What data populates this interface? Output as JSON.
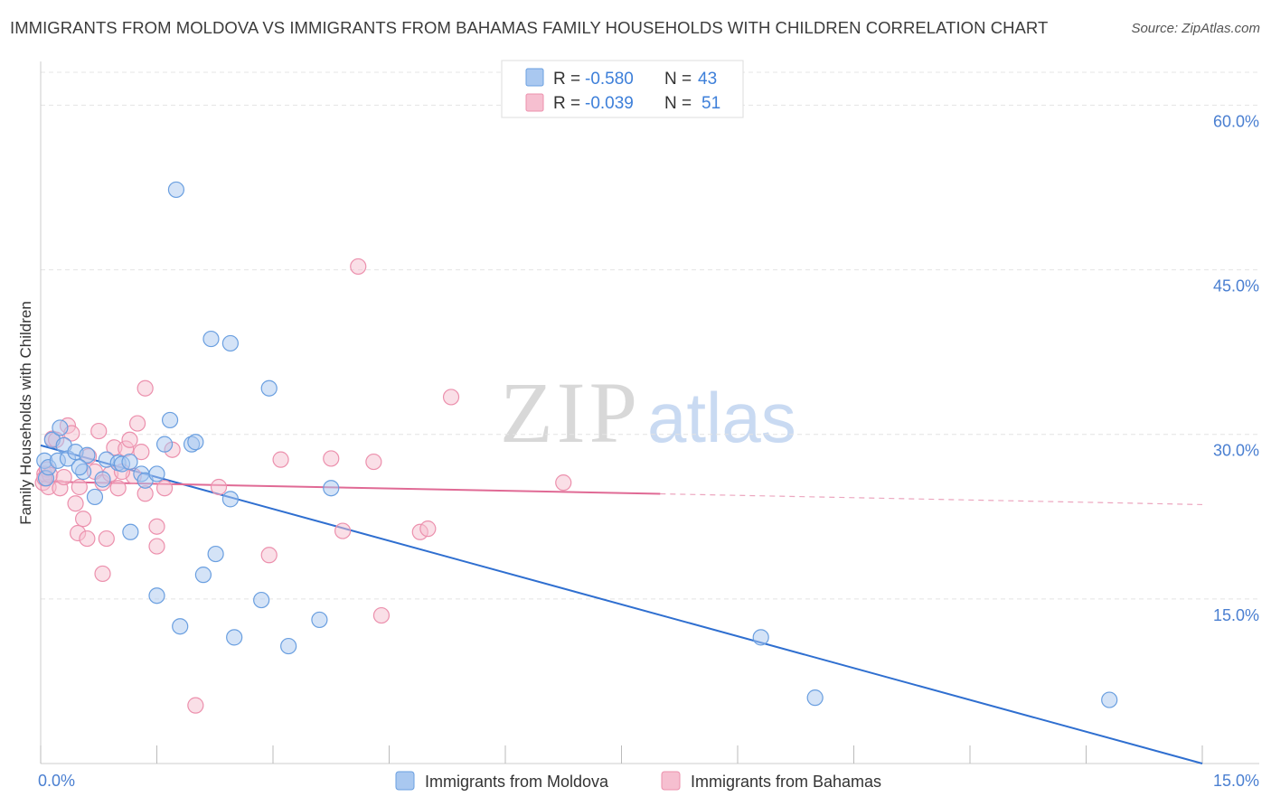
{
  "title": "IMMIGRANTS FROM MOLDOVA VS IMMIGRANTS FROM BAHAMAS FAMILY HOUSEHOLDS WITH CHILDREN CORRELATION CHART",
  "source": "Source: ZipAtlas.com",
  "watermark": {
    "zip": "ZIP",
    "atlas": "atlas"
  },
  "colors": {
    "moldova_fill": "#a9c8f0",
    "moldova_stroke": "#6a9fe0",
    "moldova_line": "#2f6fd0",
    "bahamas_fill": "#f6bfd0",
    "bahamas_stroke": "#ec90ad",
    "bahamas_line": "#e06a95",
    "tick_text": "#4a7fd1",
    "grid": "#e4e4e4"
  },
  "legend": {
    "r_label": "R =",
    "n_label": "N =",
    "rows": [
      {
        "series": "moldova",
        "r": "-0.580",
        "n": "43"
      },
      {
        "series": "bahamas",
        "r": "-0.039",
        "n": "51"
      }
    ]
  },
  "chart_data": {
    "type": "scatter",
    "title": "IMMIGRANTS FROM MOLDOVA VS IMMIGRANTS FROM BAHAMAS FAMILY HOUSEHOLDS WITH CHILDREN CORRELATION CHART",
    "xlabel": "",
    "ylabel": "Family Households with Children",
    "xlim": [
      0,
      15
    ],
    "ylim": [
      0,
      63
    ],
    "x_tick_labels": [
      {
        "value": 0,
        "label": "0.0%"
      },
      {
        "value": 15,
        "label": "15.0%"
      }
    ],
    "y_tick_labels": [
      {
        "value": 15,
        "label": "15.0%"
      },
      {
        "value": 30,
        "label": "30.0%"
      },
      {
        "value": 45,
        "label": "45.0%"
      },
      {
        "value": 60,
        "label": "60.0%"
      }
    ],
    "series": [
      {
        "name": "Immigrants from Moldova",
        "key": "moldova",
        "r": -0.58,
        "n": 43,
        "trend": {
          "x": [
            0,
            15
          ],
          "y": [
            29.0,
            0.0
          ],
          "solid_until": 15
        },
        "points": [
          [
            0.05,
            27.6
          ],
          [
            0.07,
            26.0
          ],
          [
            0.1,
            27.0
          ],
          [
            0.15,
            29.5
          ],
          [
            0.22,
            27.6
          ],
          [
            0.25,
            30.6
          ],
          [
            0.3,
            29.0
          ],
          [
            0.35,
            27.8
          ],
          [
            0.45,
            28.4
          ],
          [
            0.55,
            26.6
          ],
          [
            0.6,
            28.1
          ],
          [
            0.7,
            24.3
          ],
          [
            0.85,
            27.7
          ],
          [
            0.8,
            25.9
          ],
          [
            1.0,
            27.4
          ],
          [
            1.05,
            27.3
          ],
          [
            1.15,
            27.5
          ],
          [
            1.3,
            26.4
          ],
          [
            1.35,
            25.8
          ],
          [
            1.5,
            26.4
          ],
          [
            1.6,
            29.1
          ],
          [
            1.67,
            31.3
          ],
          [
            1.95,
            29.1
          ],
          [
            2.0,
            29.3
          ],
          [
            1.75,
            52.3
          ],
          [
            2.2,
            38.7
          ],
          [
            2.45,
            38.3
          ],
          [
            2.95,
            34.2
          ],
          [
            2.45,
            24.1
          ],
          [
            3.75,
            25.1
          ],
          [
            1.16,
            21.1
          ],
          [
            2.26,
            19.1
          ],
          [
            2.1,
            17.2
          ],
          [
            1.5,
            15.3
          ],
          [
            2.85,
            14.9
          ],
          [
            1.8,
            12.5
          ],
          [
            3.6,
            13.1
          ],
          [
            2.5,
            11.5
          ],
          [
            3.2,
            10.7
          ],
          [
            9.3,
            11.5
          ],
          [
            10.0,
            6.0
          ],
          [
            13.8,
            5.8
          ],
          [
            0.5,
            27.0
          ]
        ]
      },
      {
        "name": "Immigrants from Bahamas",
        "key": "bahamas",
        "r": -0.039,
        "n": 51,
        "trend": {
          "x": [
            0,
            15
          ],
          "y": [
            25.7,
            23.6
          ],
          "solid_until": 8.0
        },
        "points": [
          [
            0.03,
            25.6
          ],
          [
            0.05,
            26.4
          ],
          [
            0.08,
            26.8
          ],
          [
            0.1,
            25.2
          ],
          [
            0.12,
            26.3
          ],
          [
            0.15,
            29.6
          ],
          [
            0.2,
            29.5
          ],
          [
            0.25,
            25.1
          ],
          [
            0.35,
            30.8
          ],
          [
            0.4,
            30.1
          ],
          [
            0.45,
            23.7
          ],
          [
            0.5,
            25.2
          ],
          [
            0.48,
            21.0
          ],
          [
            0.55,
            22.3
          ],
          [
            0.6,
            20.5
          ],
          [
            0.62,
            28.0
          ],
          [
            0.7,
            26.6
          ],
          [
            0.75,
            30.3
          ],
          [
            0.8,
            17.3
          ],
          [
            0.8,
            25.6
          ],
          [
            0.85,
            20.5
          ],
          [
            0.9,
            26.4
          ],
          [
            0.95,
            28.8
          ],
          [
            1.0,
            25.1
          ],
          [
            1.1,
            28.7
          ],
          [
            1.15,
            29.5
          ],
          [
            1.2,
            26.2
          ],
          [
            1.25,
            31.0
          ],
          [
            1.3,
            28.4
          ],
          [
            1.35,
            24.6
          ],
          [
            1.35,
            34.2
          ],
          [
            1.5,
            21.6
          ],
          [
            1.5,
            19.8
          ],
          [
            1.6,
            25.1
          ],
          [
            1.7,
            28.6
          ],
          [
            2.0,
            5.3
          ],
          [
            2.3,
            25.2
          ],
          [
            2.95,
            19.0
          ],
          [
            3.1,
            27.7
          ],
          [
            3.75,
            27.8
          ],
          [
            3.9,
            21.2
          ],
          [
            4.1,
            45.3
          ],
          [
            4.3,
            27.5
          ],
          [
            4.4,
            13.5
          ],
          [
            4.9,
            21.1
          ],
          [
            5.0,
            21.4
          ],
          [
            5.3,
            33.4
          ],
          [
            6.75,
            25.6
          ],
          [
            1.05,
            26.6
          ],
          [
            0.3,
            26.1
          ],
          [
            0.05,
            26.0
          ]
        ]
      }
    ]
  },
  "bottom_legend": [
    {
      "series": "moldova",
      "label": "Immigrants from Moldova"
    },
    {
      "series": "bahamas",
      "label": "Immigrants from Bahamas"
    }
  ]
}
